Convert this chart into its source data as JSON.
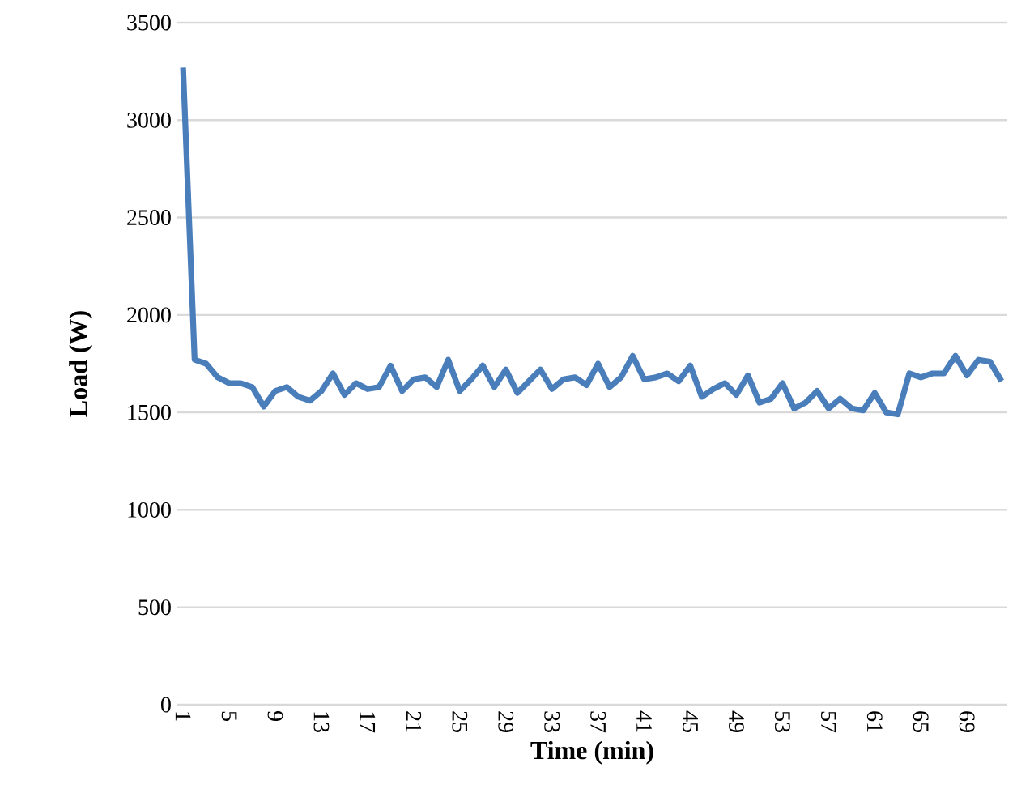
{
  "chart_data": {
    "type": "line",
    "xlabel": "Time (min)",
    "ylabel": "Load (W)",
    "categories": [
      "1",
      null,
      null,
      null,
      "5",
      null,
      null,
      null,
      "9",
      null,
      null,
      null,
      "13",
      null,
      null,
      null,
      "17",
      null,
      null,
      null,
      "21",
      null,
      null,
      null,
      "25",
      null,
      null,
      null,
      "29",
      null,
      null,
      null,
      "33",
      null,
      null,
      null,
      "37",
      null,
      null,
      null,
      "41",
      null,
      null,
      null,
      "45",
      null,
      null,
      null,
      "49",
      null,
      null,
      null,
      "53",
      null,
      null,
      null,
      "57",
      null,
      null,
      null,
      "61",
      null,
      null,
      null,
      "65",
      null,
      null,
      null,
      "69",
      null,
      null,
      null
    ],
    "series": [
      {
        "color": "#4a7ebb",
        "values": [
          3270,
          1770,
          1750,
          1680,
          1650,
          1650,
          1630,
          1530,
          1610,
          1630,
          1580,
          1560,
          1610,
          1700,
          1590,
          1650,
          1620,
          1630,
          1740,
          1610,
          1670,
          1680,
          1630,
          1770,
          1610,
          1670,
          1740,
          1630,
          1720,
          1600,
          1660,
          1720,
          1620,
          1670,
          1680,
          1640,
          1750,
          1630,
          1680,
          1790,
          1670,
          1680,
          1700,
          1660,
          1740,
          1580,
          1620,
          1650,
          1590,
          1690,
          1550,
          1570,
          1650,
          1520,
          1550,
          1610,
          1520,
          1570,
          1520,
          1510,
          1600,
          1500,
          1490,
          1700,
          1680,
          1700,
          1700,
          1790,
          1690,
          1770,
          1760,
          1660
        ]
      }
    ],
    "ylim": [
      0,
      3500
    ],
    "yticks": [
      0,
      500,
      1000,
      1500,
      2000,
      2500,
      3000,
      3500
    ],
    "grid": "y",
    "marker": "none",
    "line_style": "solid"
  }
}
